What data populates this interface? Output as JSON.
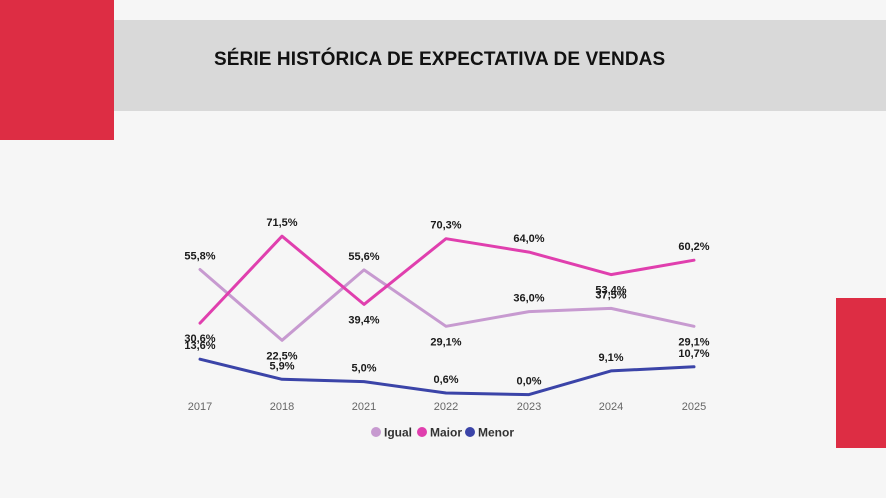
{
  "header": {
    "title": "SÉRIE HISTÓRICA DE EXPECTATIVA DE VENDAS"
  },
  "colors": {
    "accent": "#dd2d44",
    "band": "#d9d9d9"
  },
  "chart_data": {
    "type": "line",
    "title": "SÉRIE HISTÓRICA DE EXPECTATIVA DE VENDAS",
    "xlabel": "",
    "ylabel": "",
    "categories": [
      "2017",
      "2018",
      "2021",
      "2022",
      "2023",
      "2024",
      "2025"
    ],
    "ylim": [
      0,
      80
    ],
    "grid": false,
    "legend": "bottom",
    "series": [
      {
        "name": "Igual",
        "color": "#c79ad0",
        "values": [
          55.8,
          22.5,
          55.6,
          29.1,
          36.0,
          37.5,
          29.1
        ],
        "labels": [
          "55,8%",
          "22,5%",
          "55,6%",
          "29,1%",
          "36,0%",
          "37,5%",
          "29,1%"
        ]
      },
      {
        "name": "Maior",
        "color": "#e03fae",
        "values": [
          30.6,
          71.5,
          39.4,
          70.3,
          64.0,
          53.4,
          60.2
        ],
        "labels": [
          "30,6%",
          "71,5%",
          "39,4%",
          "70,3%",
          "64,0%",
          "53,4%",
          "60,2%"
        ]
      },
      {
        "name": "Menor",
        "color": "#3b44a8",
        "values": [
          13.6,
          5.9,
          5.0,
          0.6,
          0.0,
          9.1,
          10.7
        ],
        "labels": [
          "13,6%",
          "5,9%",
          "5,0%",
          "0,6%",
          "0,0%",
          "9,1%",
          "10,7%"
        ]
      }
    ]
  }
}
